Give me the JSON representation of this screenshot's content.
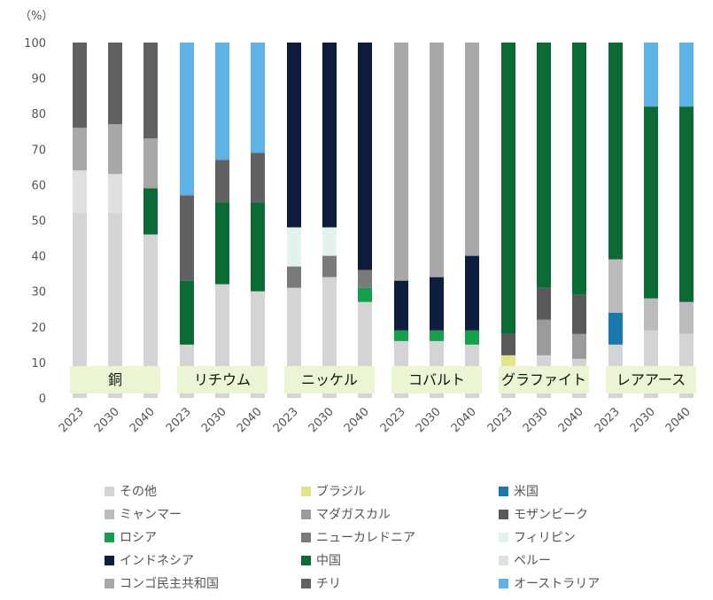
{
  "chart_data": {
    "type": "stacked-bar",
    "ylabel": "（%）",
    "ylim": [
      0,
      100
    ],
    "yticks": [
      0,
      10,
      20,
      30,
      40,
      50,
      60,
      70,
      80,
      90,
      100
    ],
    "grid": false,
    "legend_position": "bottom",
    "years": [
      "2023",
      "2030",
      "2040"
    ],
    "series": [
      {
        "key": "other",
        "name": "その他",
        "color": "#d4d4d4"
      },
      {
        "key": "brazil",
        "name": "ブラジル",
        "color": "#e2e48a"
      },
      {
        "key": "us",
        "name": "米国",
        "color": "#1a78b0"
      },
      {
        "key": "myanmar",
        "name": "ミャンマー",
        "color": "#bcbcbc"
      },
      {
        "key": "madagascar",
        "name": "マダガスカル",
        "color": "#9b9b9b"
      },
      {
        "key": "mozambique",
        "name": "モザンビーク",
        "color": "#58595b"
      },
      {
        "key": "russia",
        "name": "ロシア",
        "color": "#12a04a"
      },
      {
        "key": "newcaledonia",
        "name": "ニューカレドニア",
        "color": "#7a7a7a"
      },
      {
        "key": "philippines",
        "name": "フィリピン",
        "color": "#e3f3ec"
      },
      {
        "key": "indonesia",
        "name": "インドネシア",
        "color": "#0e1d3e"
      },
      {
        "key": "china",
        "name": "中国",
        "color": "#0a6b34"
      },
      {
        "key": "peru",
        "name": "ペルー",
        "color": "#e0e0e0"
      },
      {
        "key": "drc",
        "name": "コンゴ民主共和国",
        "color": "#a8a8a8"
      },
      {
        "key": "chile",
        "name": "チリ",
        "color": "#606163"
      },
      {
        "key": "australia",
        "name": "オーストラリア",
        "color": "#5db3e6"
      }
    ],
    "groups": [
      {
        "mineral": "銅",
        "bars": [
          {
            "year": "2023",
            "segments": [
              [
                "other",
                52
              ],
              [
                "peru",
                12
              ],
              [
                "drc",
                12
              ],
              [
                "chile",
                24
              ]
            ]
          },
          {
            "year": "2030",
            "segments": [
              [
                "other",
                52
              ],
              [
                "peru",
                11
              ],
              [
                "drc",
                14
              ],
              [
                "chile",
                23
              ]
            ]
          },
          {
            "year": "2040",
            "segments": [
              [
                "other",
                46
              ],
              [
                "china",
                13
              ],
              [
                "drc",
                14
              ],
              [
                "chile",
                27
              ]
            ]
          }
        ]
      },
      {
        "mineral": "リチウム",
        "bars": [
          {
            "year": "2023",
            "segments": [
              [
                "other",
                15
              ],
              [
                "china",
                18
              ],
              [
                "chile",
                24
              ],
              [
                "australia",
                43
              ]
            ]
          },
          {
            "year": "2030",
            "segments": [
              [
                "other",
                32
              ],
              [
                "china",
                23
              ],
              [
                "chile",
                12
              ],
              [
                "australia",
                33
              ]
            ]
          },
          {
            "year": "2040",
            "segments": [
              [
                "other",
                30
              ],
              [
                "china",
                25
              ],
              [
                "chile",
                14
              ],
              [
                "australia",
                31
              ]
            ]
          }
        ]
      },
      {
        "mineral": "ニッケル",
        "bars": [
          {
            "year": "2023",
            "segments": [
              [
                "other",
                31
              ],
              [
                "newcaledonia",
                6
              ],
              [
                "philippines",
                11
              ],
              [
                "indonesia",
                52
              ]
            ]
          },
          {
            "year": "2030",
            "segments": [
              [
                "other",
                34
              ],
              [
                "newcaledonia",
                6
              ],
              [
                "philippines",
                8
              ],
              [
                "indonesia",
                52
              ]
            ]
          },
          {
            "year": "2040",
            "segments": [
              [
                "other",
                27
              ],
              [
                "russia",
                4
              ],
              [
                "newcaledonia",
                5
              ],
              [
                "indonesia",
                64
              ]
            ]
          }
        ]
      },
      {
        "mineral": "コバルト",
        "bars": [
          {
            "year": "2023",
            "segments": [
              [
                "other",
                16
              ],
              [
                "russia",
                3
              ],
              [
                "indonesia",
                14
              ],
              [
                "drc",
                67
              ]
            ]
          },
          {
            "year": "2030",
            "segments": [
              [
                "other",
                16
              ],
              [
                "russia",
                3
              ],
              [
                "indonesia",
                15
              ],
              [
                "drc",
                66
              ]
            ]
          },
          {
            "year": "2040",
            "segments": [
              [
                "other",
                15
              ],
              [
                "russia",
                4
              ],
              [
                "indonesia",
                21
              ],
              [
                "drc",
                60
              ]
            ]
          }
        ]
      },
      {
        "mineral": "グラファイト",
        "bars": [
          {
            "year": "2023",
            "segments": [
              [
                "other",
                9
              ],
              [
                "brazil",
                3
              ],
              [
                "mozambique",
                6
              ],
              [
                "china",
                82
              ]
            ]
          },
          {
            "year": "2030",
            "segments": [
              [
                "other",
                12
              ],
              [
                "madagascar",
                10
              ],
              [
                "mozambique",
                9
              ],
              [
                "china",
                69
              ]
            ]
          },
          {
            "year": "2040",
            "segments": [
              [
                "other",
                11
              ],
              [
                "madagascar",
                7
              ],
              [
                "mozambique",
                11
              ],
              [
                "china",
                71
              ]
            ]
          }
        ]
      },
      {
        "mineral": "レアアース",
        "bars": [
          {
            "year": "2023",
            "segments": [
              [
                "other",
                15
              ],
              [
                "us",
                9
              ],
              [
                "myanmar",
                15
              ],
              [
                "china",
                61
              ]
            ]
          },
          {
            "year": "2030",
            "segments": [
              [
                "other",
                19
              ],
              [
                "myanmar",
                9
              ],
              [
                "china",
                54
              ],
              [
                "australia",
                18
              ]
            ]
          },
          {
            "year": "2040",
            "segments": [
              [
                "other",
                18
              ],
              [
                "myanmar",
                9
              ],
              [
                "china",
                55
              ],
              [
                "australia",
                18
              ]
            ]
          }
        ]
      }
    ]
  },
  "legend": {
    "columns": [
      [
        "other",
        "myanmar",
        "russia",
        "indonesia",
        "drc"
      ],
      [
        "brazil",
        "madagascar",
        "newcaledonia",
        "china",
        "chile"
      ],
      [
        "us",
        "mozambique",
        "philippines",
        "peru",
        "australia"
      ]
    ]
  }
}
